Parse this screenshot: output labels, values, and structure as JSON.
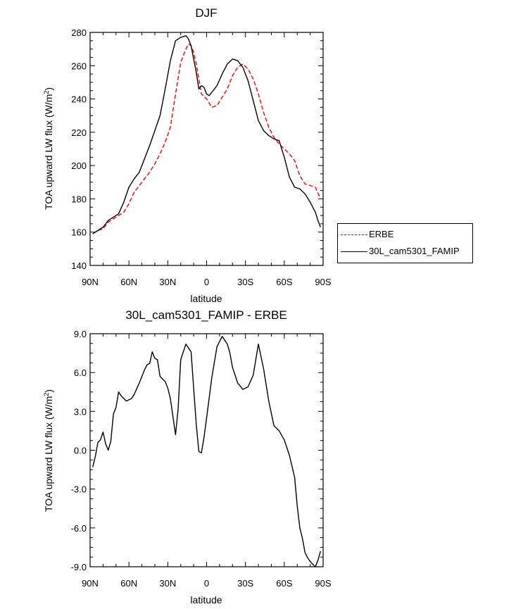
{
  "chart_data": [
    {
      "type": "line",
      "title": "DJF",
      "xlabel": "latitude",
      "ylabel_main": "TOA upward LW flux (W/m",
      "ylabel_sup": "2",
      "ylabel_close": ")",
      "xlim": [
        90,
        -90
      ],
      "ylim": [
        140,
        280
      ],
      "xticks": [
        90,
        60,
        30,
        0,
        -30,
        -60,
        -90
      ],
      "xtick_labels": [
        "90N",
        "60N",
        "30N",
        "0",
        "30S",
        "60S",
        "90S"
      ],
      "yticks": [
        140,
        160,
        180,
        200,
        220,
        240,
        260,
        280
      ],
      "ytick_labels": [
        "140",
        "160",
        "180",
        "200",
        "220",
        "240",
        "260",
        "280"
      ],
      "legend_position": "right",
      "series": [
        {
          "name": "ERBE",
          "color": "#ff0000",
          "dash": "dashed",
          "x": [
            88,
            84,
            80,
            76,
            72,
            68,
            64,
            60,
            56,
            52,
            48,
            44,
            40,
            36,
            32,
            28,
            24,
            20,
            16,
            14,
            12,
            10,
            8,
            6,
            4,
            0,
            -4,
            -8,
            -12,
            -16,
            -20,
            -24,
            -28,
            -32,
            -36,
            -40,
            -44,
            -48,
            -52,
            -56,
            -60,
            -64,
            -68,
            -72,
            -76,
            -80,
            -84,
            -88
          ],
          "y": [
            159,
            161,
            162,
            166,
            168,
            170,
            172,
            177,
            184,
            188,
            192,
            196,
            201,
            207,
            214,
            223,
            243,
            262,
            270,
            273,
            272,
            268,
            261,
            252,
            243,
            240,
            235,
            236,
            241,
            246,
            254,
            259,
            261,
            258,
            252,
            243,
            232,
            223,
            217,
            213,
            210,
            207,
            203,
            194,
            189,
            188,
            187,
            180
          ]
        },
        {
          "name": "30L_cam5301_FAMIP",
          "color": "#000000",
          "dash": "solid",
          "x": [
            88,
            84,
            80,
            76,
            72,
            68,
            64,
            60,
            56,
            52,
            48,
            44,
            40,
            36,
            32,
            28,
            24,
            20,
            16,
            14,
            12,
            10,
            8,
            6,
            4,
            2,
            0,
            -2,
            -4,
            -8,
            -12,
            -16,
            -20,
            -24,
            -28,
            -32,
            -36,
            -40,
            -44,
            -48,
            -52,
            -56,
            -60,
            -64,
            -68,
            -72,
            -76,
            -80,
            -84,
            -86,
            -88
          ],
          "y": [
            159,
            161,
            163,
            167,
            169,
            171,
            178,
            187,
            192,
            196,
            204,
            212,
            221,
            230,
            246,
            263,
            275,
            277,
            278,
            276,
            272,
            264,
            256,
            246,
            248,
            247,
            243,
            242,
            244,
            248,
            255,
            261,
            264,
            263,
            259,
            251,
            239,
            227,
            221,
            218,
            216,
            215,
            205,
            193,
            187,
            186,
            183,
            178,
            172,
            167,
            163
          ]
        }
      ]
    },
    {
      "type": "line",
      "title": "30L_cam5301_FAMIP - ERBE",
      "xlabel": "latitude",
      "ylabel_main": "TOA upward LW flux (W/m",
      "ylabel_sup": "2",
      "ylabel_close": ")",
      "xlim": [
        90,
        -90
      ],
      "ylim": [
        -9,
        9
      ],
      "xticks": [
        90,
        60,
        30,
        0,
        -30,
        -60,
        -90
      ],
      "xtick_labels": [
        "90N",
        "60N",
        "30N",
        "0",
        "30S",
        "60S",
        "90S"
      ],
      "yticks": [
        -9,
        -6,
        -3,
        0,
        3,
        6,
        9
      ],
      "ytick_labels": [
        "-9.0",
        "-6.0",
        "-3.0",
        "0.0",
        "3.0",
        "6.0",
        "9.0"
      ],
      "series": [
        {
          "color": "#000000",
          "dash": "solid",
          "x": [
            88,
            86,
            84,
            82,
            80,
            78,
            76,
            74,
            72,
            70,
            68,
            66,
            62,
            58,
            56,
            52,
            48,
            46,
            44,
            42,
            40,
            38,
            36,
            34,
            32,
            30,
            28,
            26,
            24,
            22,
            20,
            16,
            12,
            8,
            6,
            4,
            2,
            0,
            -4,
            -8,
            -12,
            -16,
            -18,
            -20,
            -24,
            -28,
            -32,
            -36,
            -40,
            -44,
            -48,
            -52,
            -56,
            -60,
            -64,
            -68,
            -70,
            -72,
            -74,
            -76,
            -78,
            -80,
            -82,
            -84,
            -86,
            -88
          ],
          "y": [
            -1.3,
            -0.5,
            0.6,
            0.8,
            1.4,
            0.5,
            0,
            0.7,
            2.8,
            3.3,
            4.5,
            4.2,
            3.8,
            4.0,
            4.3,
            5.2,
            6.2,
            6.6,
            6.7,
            7.6,
            7.1,
            7.0,
            5.7,
            5.5,
            5.3,
            4.8,
            4.0,
            2.6,
            1.2,
            3.2,
            7.0,
            8.2,
            7.6,
            2.0,
            -0.1,
            -0.2,
            1.0,
            2.5,
            5.6,
            8.0,
            8.8,
            8.2,
            7.5,
            6.4,
            5.2,
            4.7,
            4.9,
            5.8,
            8.2,
            6.3,
            3.8,
            1.9,
            1.5,
            0.8,
            -0.4,
            -2.1,
            -4.3,
            -6.0,
            -6.8,
            -7.9,
            -8.3,
            -8.6,
            -8.8,
            -9.0,
            -8.5,
            -7.8
          ]
        }
      ]
    }
  ]
}
